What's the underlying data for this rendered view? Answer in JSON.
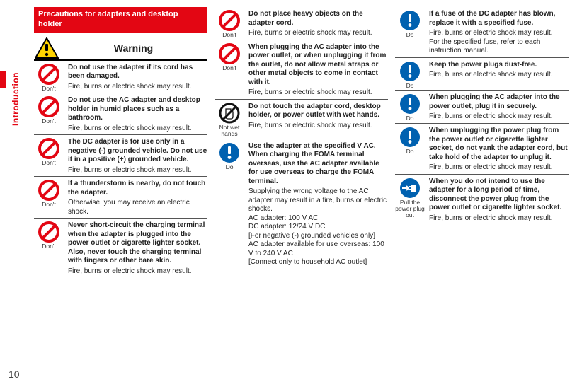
{
  "layout": {
    "page_number": "10",
    "side_tab": "Introduction",
    "accent_color": "#e30613",
    "section_title": "Precautions for adapters and desktop holder",
    "warning_label": "Warning"
  },
  "icons": {
    "dont_caption": "Don't",
    "do_caption": "Do",
    "wet_caption": "Not wet hands",
    "pull_caption": "Pull the power plug out"
  },
  "col1": [
    {
      "type": "dont",
      "title": "Do not use the adapter if its cord has been damaged.",
      "body": "Fire, burns or electric shock may result."
    },
    {
      "type": "dont",
      "title": "Do not use the AC adapter and desktop holder in humid places such as a bathroom.",
      "body": "Fire, burns or electric shock may result."
    },
    {
      "type": "dont",
      "title": "The DC adapter is for use only in a negative (-) grounded vehicle. Do not use it in a positive (+) grounded vehicle.",
      "body": "Fire, burns or electric shock may result."
    },
    {
      "type": "dont",
      "title": "If a thunderstorm is nearby, do not touch the adapter.",
      "body": "Otherwise, you may receive an electric shock."
    },
    {
      "type": "dont",
      "title": "Never short-circuit the charging terminal when the adapter is plugged into the power outlet or cigarette lighter socket. Also, never touch the charging terminal with fingers or other bare skin.",
      "body": "Fire, burns or electric shock may result.",
      "noline": true
    }
  ],
  "col2": [
    {
      "type": "dont",
      "title": "Do not place heavy objects on the adapter cord.",
      "body": "Fire, burns or electric shock may result."
    },
    {
      "type": "dont",
      "title": "When plugging the AC adapter into the power outlet, or when unplugging it from the outlet, do not allow metal straps or other metal objects to come in contact with it.",
      "body": "Fire, burns or electric shock may result."
    },
    {
      "type": "wet",
      "title": "Do not touch the adapter cord, desktop holder, or power outlet with wet hands.",
      "body": "Fire, burns or electric shock may result."
    },
    {
      "type": "do",
      "title": "Use the adapter at the specified V AC.\nWhen charging the FOMA terminal overseas, use the AC adapter available for use overseas to charge the FOMA terminal.",
      "body": "Supplying the wrong voltage to the AC adapter may result in a fire, burns or electric shocks.\nAC adapter: 100 V AC\nDC adapter: 12/24 V DC\n[For negative (-) grounded vehicles only]\nAC adapter available for use overseas: 100 V to 240 V AC\n[Connect only to household AC outlet]",
      "noline": true
    }
  ],
  "col3": [
    {
      "type": "do",
      "title": "If a fuse of the DC adapter has blown, replace it with a specified fuse.",
      "body": "Fire, burns or electric shock may result.\nFor the specified fuse, refer to each instruction manual."
    },
    {
      "type": "do",
      "title": "Keep the power plugs dust-free.",
      "body": "Fire, burns or electric shock may result."
    },
    {
      "type": "do",
      "title": "When plugging the AC adapter into the power outlet, plug it in securely.",
      "body": "Fire, burns or electric shock may result."
    },
    {
      "type": "do",
      "title": "When unplugging the power plug from the power outlet or cigarette lighter socket, do not yank the adapter cord, but take hold of the adapter to unplug it.",
      "body": "Fire, burns or electric shock may result."
    },
    {
      "type": "pull",
      "title": "When you do not intend to use the adapter for a long period of time, disconnect the power plug from the power outlet or cigarette lighter socket.",
      "body": "Fire, burns or electric shock may result.",
      "noline": true
    }
  ]
}
